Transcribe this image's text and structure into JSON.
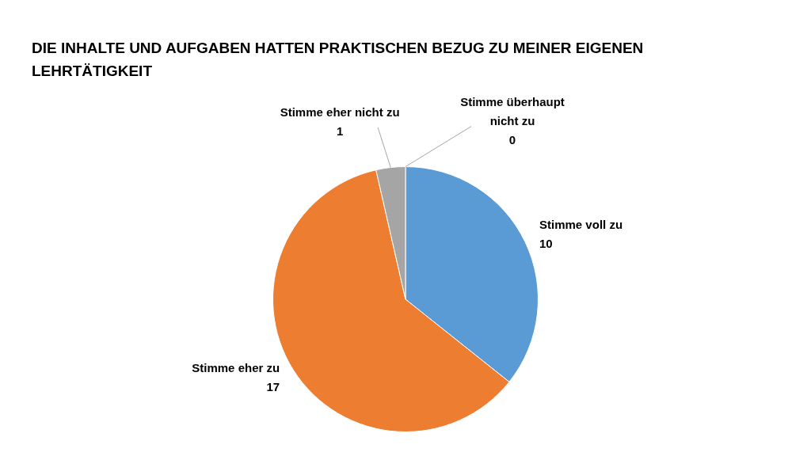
{
  "chart_data": {
    "type": "pie",
    "title": "DIE INHALTE UND AUFGABEN HATTEN PRAKTISCHEN BEZUG ZU MEINER EIGENEN LEHRTÄTIGKEIT",
    "categories": [
      "Stimme voll zu",
      "Stimme eher zu",
      "Stimme eher nicht zu",
      "Stimme überhaupt nicht zu"
    ],
    "values": [
      10,
      17,
      1,
      0
    ],
    "colors": [
      "#5b9bd5",
      "#ed7d31",
      "#a5a5a5",
      "#ffc000"
    ],
    "value_labels": [
      "10",
      "17",
      "1",
      "0"
    ],
    "legend": false
  }
}
